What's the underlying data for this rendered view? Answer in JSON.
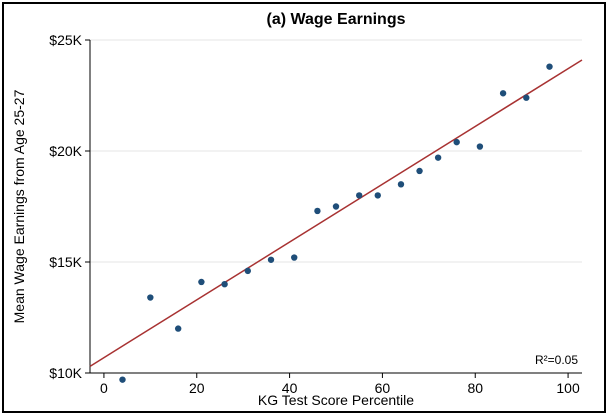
{
  "chart_data": {
    "type": "scatter",
    "title": "(a) Wage Earnings",
    "xlabel": "KG Test Score Percentile",
    "ylabel": "Mean Wage Earnings from Age 25-27",
    "xlim": [
      -3,
      103
    ],
    "ylim": [
      10000,
      25000
    ],
    "x_ticks": [
      0,
      20,
      40,
      60,
      80,
      100
    ],
    "x_tick_labels": [
      "0",
      "20",
      "40",
      "60",
      "80",
      "100"
    ],
    "y_ticks": [
      10000,
      15000,
      20000,
      25000
    ],
    "y_tick_labels": [
      "$10K",
      "$15K",
      "$20K",
      "$25K"
    ],
    "grid": "horizontal",
    "annotation": "R²=0.05",
    "colors": {
      "points": "#1f4e79",
      "fit_line": "#a83232",
      "grid": "#e6e6e6"
    },
    "points": [
      {
        "x": 4,
        "y": 9700
      },
      {
        "x": 10,
        "y": 13400
      },
      {
        "x": 16,
        "y": 12000
      },
      {
        "x": 21,
        "y": 14100
      },
      {
        "x": 26,
        "y": 14000
      },
      {
        "x": 31,
        "y": 14600
      },
      {
        "x": 36,
        "y": 15100
      },
      {
        "x": 41,
        "y": 15200
      },
      {
        "x": 46,
        "y": 17300
      },
      {
        "x": 50,
        "y": 17500
      },
      {
        "x": 55,
        "y": 18000
      },
      {
        "x": 59,
        "y": 18000
      },
      {
        "x": 64,
        "y": 18500
      },
      {
        "x": 68,
        "y": 19100
      },
      {
        "x": 72,
        "y": 19700
      },
      {
        "x": 76,
        "y": 20400
      },
      {
        "x": 81,
        "y": 20200
      },
      {
        "x": 86,
        "y": 22600
      },
      {
        "x": 91,
        "y": 22400
      },
      {
        "x": 96,
        "y": 23800
      }
    ],
    "fit_line": {
      "x": [
        -3,
        103
      ],
      "y": [
        10300,
        24100
      ]
    }
  }
}
